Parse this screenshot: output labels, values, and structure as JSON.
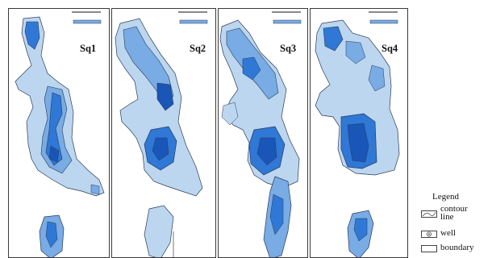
{
  "panels": [
    {
      "label": "Sq1"
    },
    {
      "label": "Sq2"
    },
    {
      "label": "Sq3"
    },
    {
      "label": "Sq4"
    }
  ],
  "colors": {
    "light": "#bcd6f0",
    "mid": "#79abe4",
    "deep": "#2f78d6",
    "darkest": "#1a56b8",
    "contour": "#2a3a55",
    "panel_border": "#3a3a3a"
  },
  "legend": {
    "title": "Legend",
    "items": [
      {
        "label": "contour\nline",
        "icon": "contour-line-icon"
      },
      {
        "label": "well",
        "icon": "well-icon"
      },
      {
        "label": "boundary",
        "icon": "boundary-icon"
      }
    ]
  }
}
